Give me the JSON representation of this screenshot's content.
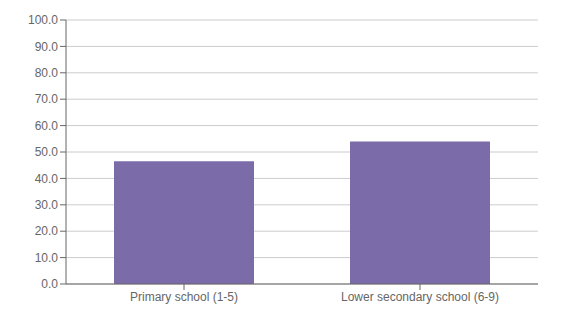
{
  "chart_data": {
    "type": "bar",
    "categories": [
      "Primary school (1-5)",
      "Lower secondary school (6-9)"
    ],
    "values": [
      46.5,
      54.0
    ],
    "color": "#7b6ba8",
    "ylim": [
      0,
      100
    ],
    "yticks": [
      {
        "value": 0,
        "label": "0.0"
      },
      {
        "value": 10,
        "label": "10.0"
      },
      {
        "value": 20,
        "label": "20.0"
      },
      {
        "value": 30,
        "label": "30.0"
      },
      {
        "value": 40,
        "label": "40.0"
      },
      {
        "value": 50,
        "label": "50.0"
      },
      {
        "value": 60,
        "label": "60.0"
      },
      {
        "value": 70,
        "label": "70.0"
      },
      {
        "value": 80,
        "label": "80.0"
      },
      {
        "value": 90,
        "label": "90.0"
      },
      {
        "value": 100,
        "label": "100.0"
      }
    ],
    "grid": true
  }
}
